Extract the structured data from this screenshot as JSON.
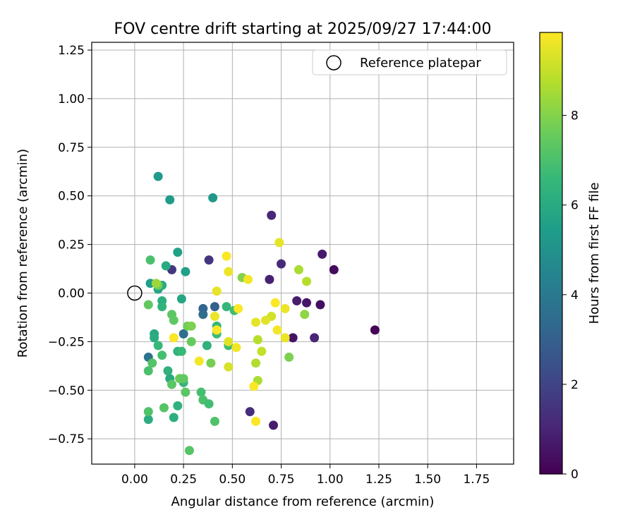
{
  "chart_data": {
    "type": "scatter",
    "title": "FOV centre drift starting at 2025/09/27 17:44:00",
    "xlabel": "Angular distance from reference (arcmin)",
    "ylabel": "Rotation from reference (arcmin)",
    "xlim": [
      -0.22,
      1.94
    ],
    "ylim": [
      -0.88,
      1.29
    ],
    "xticks": [
      0.0,
      0.25,
      0.5,
      0.75,
      1.0,
      1.25,
      1.5,
      1.75
    ],
    "xtick_labels": [
      "0.00",
      "0.25",
      "0.50",
      "0.75",
      "1.00",
      "1.25",
      "1.50",
      "1.75"
    ],
    "yticks": [
      -0.75,
      -0.5,
      -0.25,
      0.0,
      0.25,
      0.5,
      0.75,
      1.0,
      1.25
    ],
    "ytick_labels": [
      "−0.75",
      "−0.50",
      "−0.25",
      "0.00",
      "0.25",
      "0.50",
      "0.75",
      "1.00",
      "1.25"
    ],
    "grid": true,
    "legend": {
      "position": "top-right",
      "entries": [
        "Reference platepar"
      ]
    },
    "reference_point": {
      "x": 0.0,
      "y": 0.0
    },
    "colorbar": {
      "label": "Hours from first FF file",
      "colormap": "viridis",
      "range": [
        0,
        9.85
      ],
      "ticks": [
        0,
        2,
        4,
        6,
        8
      ],
      "tick_labels": [
        "0",
        "2",
        "4",
        "6",
        "8"
      ]
    },
    "points": [
      {
        "x": 1.23,
        "y": -0.19,
        "h": 0.1
      },
      {
        "x": 1.02,
        "y": 0.12,
        "h": 0.3
      },
      {
        "x": 0.95,
        "y": -0.06,
        "h": 0.4
      },
      {
        "x": 0.96,
        "y": 0.2,
        "h": 0.7
      },
      {
        "x": 0.92,
        "y": -0.23,
        "h": 1.0
      },
      {
        "x": 0.88,
        "y": -0.05,
        "h": 0.6
      },
      {
        "x": 0.83,
        "y": -0.04,
        "h": 0.8
      },
      {
        "x": 0.81,
        "y": -0.23,
        "h": 0.5
      },
      {
        "x": 0.75,
        "y": 0.15,
        "h": 1.2
      },
      {
        "x": 0.7,
        "y": 0.4,
        "h": 1.1
      },
      {
        "x": 0.69,
        "y": 0.07,
        "h": 0.9
      },
      {
        "x": 0.71,
        "y": -0.68,
        "h": 0.8
      },
      {
        "x": 0.59,
        "y": -0.61,
        "h": 1.3
      },
      {
        "x": 0.38,
        "y": 0.17,
        "h": 1.5
      },
      {
        "x": 0.19,
        "y": 0.12,
        "h": 1.6
      },
      {
        "x": 0.41,
        "y": -0.07,
        "h": 3.0
      },
      {
        "x": 0.35,
        "y": -0.08,
        "h": 3.2
      },
      {
        "x": 0.35,
        "y": -0.11,
        "h": 3.5
      },
      {
        "x": 0.07,
        "y": -0.33,
        "h": 3.8
      },
      {
        "x": 0.25,
        "y": -0.21,
        "h": 3.6
      },
      {
        "x": 0.12,
        "y": 0.6,
        "h": 5.3
      },
      {
        "x": 0.4,
        "y": 0.49,
        "h": 5.2
      },
      {
        "x": 0.18,
        "y": 0.48,
        "h": 5.4
      },
      {
        "x": 0.22,
        "y": 0.21,
        "h": 5.6
      },
      {
        "x": 0.26,
        "y": 0.11,
        "h": 5.5
      },
      {
        "x": 0.16,
        "y": 0.14,
        "h": 6.0
      },
      {
        "x": 0.08,
        "y": 0.05,
        "h": 5.5
      },
      {
        "x": 0.12,
        "y": 0.02,
        "h": 5.8
      },
      {
        "x": 0.14,
        "y": 0.04,
        "h": 6.0
      },
      {
        "x": 0.14,
        "y": -0.04,
        "h": 6.2
      },
      {
        "x": 0.14,
        "y": -0.07,
        "h": 6.4
      },
      {
        "x": 0.24,
        "y": -0.03,
        "h": 5.8
      },
      {
        "x": 0.1,
        "y": -0.21,
        "h": 5.9
      },
      {
        "x": 0.1,
        "y": -0.23,
        "h": 6.1
      },
      {
        "x": 0.12,
        "y": -0.27,
        "h": 6.6
      },
      {
        "x": 0.14,
        "y": -0.32,
        "h": 6.9
      },
      {
        "x": 0.22,
        "y": -0.3,
        "h": 6.4
      },
      {
        "x": 0.24,
        "y": -0.3,
        "h": 6.6
      },
      {
        "x": 0.25,
        "y": -0.46,
        "h": 6.5
      },
      {
        "x": 0.17,
        "y": -0.4,
        "h": 6.3
      },
      {
        "x": 0.18,
        "y": -0.44,
        "h": 6.0
      },
      {
        "x": 0.22,
        "y": -0.58,
        "h": 6.3
      },
      {
        "x": 0.2,
        "y": -0.64,
        "h": 6.2
      },
      {
        "x": 0.07,
        "y": -0.65,
        "h": 6.1
      },
      {
        "x": 0.37,
        "y": -0.27,
        "h": 6.3
      },
      {
        "x": 0.42,
        "y": -0.21,
        "h": 6.7
      },
      {
        "x": 0.42,
        "y": -0.17,
        "h": 6.5
      },
      {
        "x": 0.47,
        "y": -0.07,
        "h": 6.5
      },
      {
        "x": 0.51,
        "y": -0.09,
        "h": 6.8
      },
      {
        "x": 0.48,
        "y": -0.27,
        "h": 6.8
      },
      {
        "x": 0.34,
        "y": -0.51,
        "h": 6.9
      },
      {
        "x": 0.35,
        "y": -0.55,
        "h": 7.0
      },
      {
        "x": 0.38,
        "y": -0.57,
        "h": 6.8
      },
      {
        "x": 0.41,
        "y": -0.66,
        "h": 7.1
      },
      {
        "x": 0.28,
        "y": -0.81,
        "h": 7.2
      },
      {
        "x": 0.26,
        "y": -0.51,
        "h": 7.3
      },
      {
        "x": 0.15,
        "y": -0.59,
        "h": 7.2
      },
      {
        "x": 0.07,
        "y": -0.61,
        "h": 7.1
      },
      {
        "x": 0.07,
        "y": -0.4,
        "h": 7.0
      },
      {
        "x": 0.09,
        "y": -0.36,
        "h": 7.2
      },
      {
        "x": 0.08,
        "y": 0.17,
        "h": 7.0
      },
      {
        "x": 0.07,
        "y": -0.06,
        "h": 7.4
      },
      {
        "x": 0.19,
        "y": -0.11,
        "h": 7.3
      },
      {
        "x": 0.2,
        "y": -0.14,
        "h": 7.4
      },
      {
        "x": 0.19,
        "y": -0.47,
        "h": 7.3
      },
      {
        "x": 0.23,
        "y": -0.44,
        "h": 7.6
      },
      {
        "x": 0.25,
        "y": -0.44,
        "h": 7.4
      },
      {
        "x": 0.27,
        "y": -0.17,
        "h": 7.7
      },
      {
        "x": 0.29,
        "y": -0.25,
        "h": 7.5
      },
      {
        "x": 0.29,
        "y": -0.17,
        "h": 7.9
      },
      {
        "x": 0.39,
        "y": -0.36,
        "h": 7.8
      },
      {
        "x": 0.12,
        "y": 0.04,
        "h": 7.6
      },
      {
        "x": 0.55,
        "y": 0.08,
        "h": 8.0
      },
      {
        "x": 0.79,
        "y": -0.33,
        "h": 7.9
      },
      {
        "x": 0.87,
        "y": -0.11,
        "h": 8.2
      },
      {
        "x": 0.88,
        "y": 0.06,
        "h": 8.8
      },
      {
        "x": 0.84,
        "y": 0.12,
        "h": 8.6
      },
      {
        "x": 0.62,
        "y": -0.36,
        "h": 8.7
      },
      {
        "x": 0.63,
        "y": -0.45,
        "h": 8.6
      },
      {
        "x": 0.63,
        "y": -0.24,
        "h": 8.8
      },
      {
        "x": 0.65,
        "y": -0.3,
        "h": 9.0
      },
      {
        "x": 0.7,
        "y": -0.12,
        "h": 9.2
      },
      {
        "x": 0.72,
        "y": -0.05,
        "h": 9.8
      },
      {
        "x": 0.74,
        "y": 0.26,
        "h": 9.5
      },
      {
        "x": 0.77,
        "y": -0.08,
        "h": 9.6
      },
      {
        "x": 0.77,
        "y": -0.23,
        "h": 9.6
      },
      {
        "x": 0.73,
        "y": -0.19,
        "h": 9.7
      },
      {
        "x": 0.67,
        "y": -0.14,
        "h": 9.4
      },
      {
        "x": 0.62,
        "y": -0.15,
        "h": 9.5
      },
      {
        "x": 0.61,
        "y": -0.48,
        "h": 9.8
      },
      {
        "x": 0.62,
        "y": -0.66,
        "h": 9.8
      },
      {
        "x": 0.58,
        "y": 0.07,
        "h": 9.7
      },
      {
        "x": 0.53,
        "y": -0.08,
        "h": 9.8
      },
      {
        "x": 0.52,
        "y": -0.28,
        "h": 9.7
      },
      {
        "x": 0.48,
        "y": -0.25,
        "h": 9.4
      },
      {
        "x": 0.48,
        "y": -0.38,
        "h": 9.3
      },
      {
        "x": 0.48,
        "y": 0.11,
        "h": 9.6
      },
      {
        "x": 0.47,
        "y": 0.19,
        "h": 9.8
      },
      {
        "x": 0.42,
        "y": 0.01,
        "h": 9.5
      },
      {
        "x": 0.41,
        "y": -0.12,
        "h": 9.6
      },
      {
        "x": 0.42,
        "y": -0.19,
        "h": 9.8
      },
      {
        "x": 0.33,
        "y": -0.35,
        "h": 9.7
      },
      {
        "x": 0.2,
        "y": -0.23,
        "h": 9.8
      },
      {
        "x": 0.11,
        "y": 0.05,
        "h": 8.4
      }
    ]
  }
}
